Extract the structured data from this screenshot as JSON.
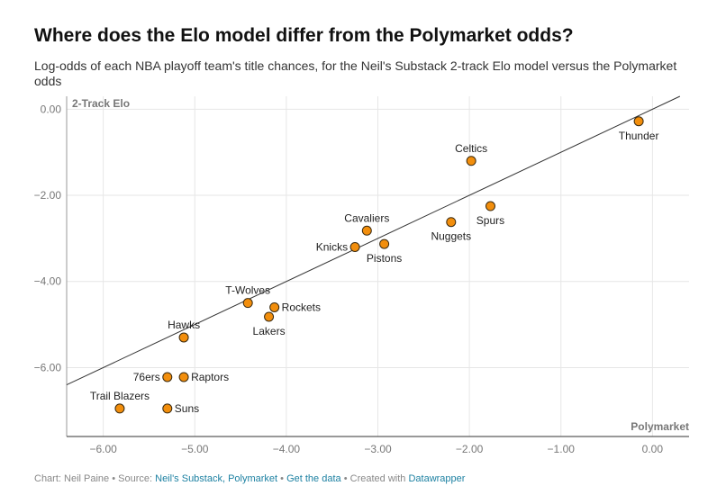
{
  "header": {
    "title": "Where does the Elo model differ from the Polymarket odds?",
    "subtitle": "Log-odds of each NBA playoff team's title chances, for the Neil's Substack 2-track Elo model versus the Polymarket odds"
  },
  "chart_data": {
    "type": "scatter",
    "xlabel": "Polymarket",
    "ylabel": "2-Track Elo",
    "xlim": [
      -6.4,
      0.4
    ],
    "ylim": [
      -7.6,
      0.3
    ],
    "x_ticks": [
      -6,
      -5,
      -4,
      -3,
      -2,
      -1,
      0
    ],
    "x_tick_labels": [
      "−6.00",
      "−5.00",
      "−4.00",
      "−3.00",
      "−2.00",
      "−1.00",
      "0.00"
    ],
    "y_ticks": [
      0,
      -2,
      -4,
      -6
    ],
    "y_tick_labels": [
      "0.00",
      "−2.00",
      "−4.00",
      "−6.00"
    ],
    "grid": true,
    "reference_line": "y = x",
    "point_color": "#f28e0c",
    "points": [
      {
        "label": "Thunder",
        "x": -0.15,
        "y": -0.28
      },
      {
        "label": "Celtics",
        "x": -1.98,
        "y": -1.2
      },
      {
        "label": "Spurs",
        "x": -1.77,
        "y": -2.25
      },
      {
        "label": "Nuggets",
        "x": -2.2,
        "y": -2.62
      },
      {
        "label": "Cavaliers",
        "x": -3.12,
        "y": -2.82
      },
      {
        "label": "Knicks",
        "x": -3.25,
        "y": -3.2
      },
      {
        "label": "Pistons",
        "x": -2.93,
        "y": -3.13
      },
      {
        "label": "T-Wolves",
        "x": -4.42,
        "y": -4.5
      },
      {
        "label": "Rockets",
        "x": -4.13,
        "y": -4.6
      },
      {
        "label": "Lakers",
        "x": -4.19,
        "y": -4.82
      },
      {
        "label": "Hawks",
        "x": -5.12,
        "y": -5.3
      },
      {
        "label": "76ers",
        "x": -5.3,
        "y": -6.22
      },
      {
        "label": "Raptors",
        "x": -5.12,
        "y": -6.22
      },
      {
        "label": "Trail Blazers",
        "x": -5.82,
        "y": -6.95
      },
      {
        "label": "Suns",
        "x": -5.3,
        "y": -6.95
      }
    ]
  },
  "footer": {
    "chart_credit": "Chart: Neil Paine",
    "source_label": "Source:",
    "source_links": "Neil's Substack, Polymarket",
    "get_data": "Get the data",
    "created_with": "Created with",
    "tool": "Datawrapper"
  }
}
